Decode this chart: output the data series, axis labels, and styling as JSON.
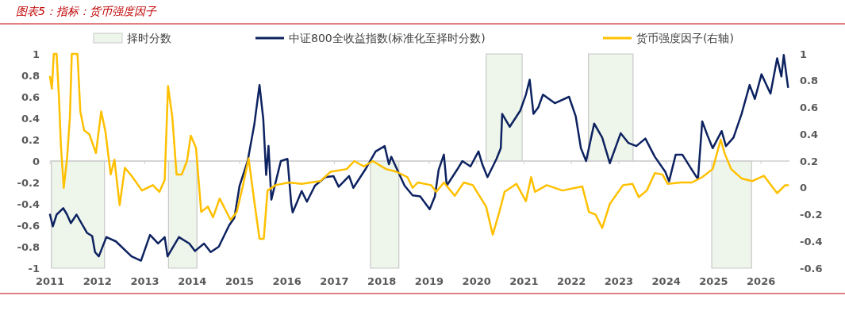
{
  "chart_data": {
    "type": "line",
    "title": "图表5：指标：货币强度因子",
    "legend": "top",
    "xlim": [
      2011,
      2026.6
    ],
    "xticks": [
      2011,
      2012,
      2013,
      2014,
      2015,
      2016,
      2017,
      2018,
      2019,
      2020,
      2021,
      2022,
      2023,
      2024,
      2025,
      2026
    ],
    "ylim": [
      -1,
      1
    ],
    "yticks": [
      -1,
      -0.8,
      -0.6,
      -0.4,
      -0.2,
      0,
      0.2,
      0.4,
      0.6,
      0.8,
      1
    ],
    "y2lim": [
      -0.6,
      1
    ],
    "y2ticks": [
      -0.6,
      -0.4,
      -0.2,
      0,
      0.2,
      0.4,
      0.6,
      0.8,
      1
    ],
    "series": [
      {
        "name": "择时分数",
        "type": "area",
        "color": "#eef5ea",
        "x": [
          2011.03,
          2011.03,
          2012.15,
          2012.15,
          2013.5,
          2013.5,
          2014.1,
          2014.1,
          2017.76,
          2017.76,
          2018.36,
          2018.36,
          2020.2,
          2020.2,
          2020.96,
          2020.96,
          2022.36,
          2022.36,
          2023.3,
          2023.3,
          2024.96,
          2024.96,
          2025.8,
          2025.8
        ],
        "values": [
          0,
          -1,
          -1,
          0,
          0,
          -1,
          -1,
          0,
          0,
          -1,
          -1,
          0,
          0,
          1,
          1,
          0,
          0,
          1,
          1,
          0,
          0,
          -1,
          -1,
          0
        ]
      },
      {
        "name": "中证800全收益指数(标准化至择时分数)",
        "color": "#0d2260",
        "x": [
          2011.0,
          2011.06,
          2011.14,
          2011.28,
          2011.36,
          2011.44,
          2011.56,
          2011.78,
          2011.89,
          2011.95,
          2012.03,
          2012.19,
          2012.39,
          2012.72,
          2012.92,
          2013.11,
          2013.28,
          2013.42,
          2013.48,
          2013.72,
          2013.94,
          2014.06,
          2014.25,
          2014.39,
          2014.56,
          2014.78,
          2014.89,
          2015.0,
          2015.17,
          2015.31,
          2015.42,
          2015.5,
          2015.56,
          2015.61,
          2015.67,
          2015.87,
          2016.01,
          2016.09,
          2016.12,
          2016.31,
          2016.42,
          2016.59,
          2016.81,
          2016.98,
          2017.09,
          2017.31,
          2017.4,
          2017.65,
          2017.87,
          2018.06,
          2018.15,
          2018.2,
          2018.48,
          2018.65,
          2018.81,
          2019.01,
          2019.12,
          2019.2,
          2019.31,
          2019.37,
          2019.59,
          2019.7,
          2019.87,
          2020.04,
          2020.12,
          2020.23,
          2020.42,
          2020.51,
          2020.54,
          2020.7,
          2020.92,
          2021.04,
          2021.12,
          2021.2,
          2021.3,
          2021.4,
          2021.65,
          2021.95,
          2022.09,
          2022.2,
          2022.31,
          2022.48,
          2022.65,
          2022.81,
          2023.04,
          2023.2,
          2023.37,
          2023.56,
          2023.76,
          2023.98,
          2024.06,
          2024.2,
          2024.34,
          2024.54,
          2024.67,
          2024.76,
          2024.87,
          2024.98,
          2025.17,
          2025.26,
          2025.42,
          2025.59,
          2025.76,
          2025.87,
          2026.01,
          2026.2,
          2026.34,
          2026.43,
          2026.48,
          2026.57
        ],
        "values": [
          -0.5,
          -0.61,
          -0.5,
          -0.44,
          -0.5,
          -0.58,
          -0.5,
          -0.67,
          -0.7,
          -0.85,
          -0.89,
          -0.71,
          -0.75,
          -0.89,
          -0.93,
          -0.69,
          -0.77,
          -0.71,
          -0.89,
          -0.71,
          -0.77,
          -0.84,
          -0.77,
          -0.85,
          -0.8,
          -0.6,
          -0.53,
          -0.23,
          0.0,
          0.34,
          0.71,
          0.39,
          -0.13,
          0.14,
          -0.36,
          0.0,
          0.02,
          -0.4,
          -0.48,
          -0.28,
          -0.38,
          -0.23,
          -0.15,
          -0.14,
          -0.24,
          -0.14,
          -0.25,
          -0.08,
          0.09,
          0.14,
          -0.03,
          0.04,
          -0.23,
          -0.32,
          -0.33,
          -0.45,
          -0.33,
          -0.08,
          0.06,
          -0.23,
          -0.08,
          0.0,
          -0.05,
          0.09,
          -0.03,
          -0.15,
          0.02,
          0.12,
          0.44,
          0.32,
          0.47,
          0.62,
          0.76,
          0.44,
          0.5,
          0.62,
          0.54,
          0.6,
          0.42,
          0.12,
          0.0,
          0.35,
          0.22,
          -0.02,
          0.26,
          0.17,
          0.14,
          0.21,
          0.04,
          -0.1,
          -0.19,
          0.06,
          0.06,
          -0.08,
          -0.17,
          0.37,
          0.24,
          0.12,
          0.28,
          0.14,
          0.22,
          0.44,
          0.71,
          0.58,
          0.81,
          0.63,
          0.96,
          0.79,
          0.99,
          0.69
        ]
      },
      {
        "name": "货币强度因子(右轴)",
        "color": "#ffc000",
        "axis": "y2",
        "x": [
          2011.0,
          2011.04,
          2011.08,
          2011.14,
          2011.19,
          2011.23,
          2011.29,
          2011.36,
          2011.42,
          2011.46,
          2011.58,
          2011.64,
          2011.72,
          2011.83,
          2011.97,
          2012.08,
          2012.17,
          2012.28,
          2012.36,
          2012.47,
          2012.58,
          2012.72,
          2012.94,
          2013.17,
          2013.31,
          2013.42,
          2013.49,
          2013.58,
          2013.67,
          2013.78,
          2013.89,
          2013.97,
          2014.08,
          2014.19,
          2014.33,
          2014.44,
          2014.58,
          2014.81,
          2014.94,
          2015.06,
          2015.19,
          2015.31,
          2015.42,
          2015.51,
          2015.59,
          2015.76,
          2016.04,
          2016.31,
          2016.7,
          2016.92,
          2017.26,
          2017.42,
          2017.62,
          2017.81,
          2018.09,
          2018.31,
          2018.54,
          2018.65,
          2018.76,
          2019.04,
          2019.15,
          2019.31,
          2019.54,
          2019.73,
          2019.92,
          2020.06,
          2020.2,
          2020.34,
          2020.48,
          2020.59,
          2020.84,
          2021.04,
          2021.15,
          2021.23,
          2021.48,
          2021.81,
          2022.23,
          2022.37,
          2022.51,
          2022.65,
          2022.81,
          2023.09,
          2023.29,
          2023.42,
          2023.59,
          2023.76,
          2023.92,
          2024.03,
          2024.31,
          2024.54,
          2024.76,
          2024.98,
          2025.15,
          2025.23,
          2025.37,
          2025.59,
          2025.81,
          2026.06,
          2026.34,
          2026.51,
          2026.57
        ],
        "values": [
          0.83,
          0.74,
          1.0,
          1.0,
          0.67,
          0.32,
          0.0,
          0.22,
          0.53,
          1.0,
          1.0,
          0.57,
          0.43,
          0.4,
          0.26,
          0.57,
          0.42,
          0.1,
          0.21,
          -0.13,
          0.15,
          0.09,
          -0.02,
          0.02,
          -0.03,
          0.06,
          0.76,
          0.53,
          0.1,
          0.1,
          0.2,
          0.39,
          0.3,
          -0.18,
          -0.14,
          -0.22,
          -0.08,
          -0.24,
          -0.18,
          0.0,
          0.22,
          -0.1,
          -0.38,
          -0.38,
          -0.02,
          0.02,
          0.04,
          0.03,
          0.05,
          0.12,
          0.14,
          0.2,
          0.16,
          0.2,
          0.14,
          0.12,
          0.08,
          0.0,
          0.04,
          0.02,
          -0.03,
          0.04,
          -0.06,
          0.04,
          0.02,
          -0.06,
          -0.14,
          -0.35,
          -0.18,
          -0.03,
          0.03,
          -0.1,
          0.08,
          -0.03,
          0.02,
          -0.02,
          0.01,
          -0.18,
          -0.2,
          -0.3,
          -0.12,
          0.02,
          0.03,
          -0.07,
          -0.02,
          0.11,
          0.1,
          0.03,
          0.04,
          0.04,
          0.08,
          0.14,
          0.36,
          0.26,
          0.14,
          0.07,
          0.05,
          0.09,
          -0.04,
          0.02,
          0.02
        ]
      }
    ]
  }
}
